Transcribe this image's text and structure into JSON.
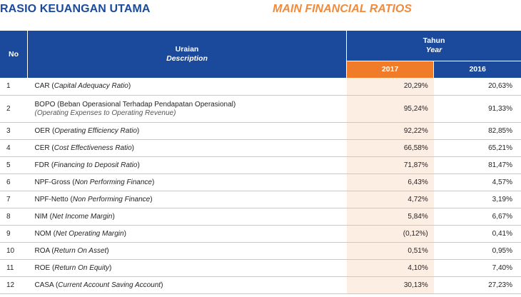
{
  "title": {
    "id": "RASIO KEUANGAN UTAMA",
    "en": "MAIN FINANCIAL RATIOS"
  },
  "header": {
    "no": "No",
    "desc_id": "Uraian",
    "desc_en": "Description",
    "year_id": "Tahun",
    "year_en": "Year",
    "col_2017": "2017",
    "col_2016": "2016"
  },
  "rows": [
    {
      "no": "1",
      "name": "CAR",
      "desc": "Capital Adequacy Ratio",
      "v2017": "20,29%",
      "v2016": "20,63%"
    },
    {
      "no": "2",
      "name": "BOPO",
      "desc_id": "Beban Operasional Terhadap Pendapatan Operasional",
      "desc_en": "Operating Expenses to Operating Revenue",
      "v2017": "95,24%",
      "v2016": "91,33%"
    },
    {
      "no": "3",
      "name": "OER",
      "desc": "Operating Efficiency Ratio",
      "v2017": "92,22%",
      "v2016": "82,85%"
    },
    {
      "no": "4",
      "name": "CER",
      "desc": "Cost Effectiveness Ratio",
      "v2017": "66,58%",
      "v2016": "65,21%"
    },
    {
      "no": "5",
      "name": "FDR",
      "desc": "Financing to Deposit Ratio",
      "v2017": "71,87%",
      "v2016": "81,47%"
    },
    {
      "no": "6",
      "name": "NPF-Gross",
      "desc": "Non Performing Finance",
      "v2017": "6,43%",
      "v2016": "4,57%"
    },
    {
      "no": "7",
      "name": "NPF-Netto",
      "desc": "Non Performing Finance",
      "v2017": "4,72%",
      "v2016": "3,19%"
    },
    {
      "no": "8",
      "name": "NIM",
      "desc": "Net Income Margin",
      "v2017": "5,84%",
      "v2016": "6,67%"
    },
    {
      "no": "9",
      "name": "NOM",
      "desc": "Net Operating Margin",
      "v2017": "(0,12%)",
      "v2016": "0,41%"
    },
    {
      "no": "10",
      "name": "ROA",
      "desc": "Return On Asset",
      "v2017": "0,51%",
      "v2016": "0,95%"
    },
    {
      "no": "11",
      "name": "ROE",
      "desc": "Return On Equity",
      "v2017": "4,10%",
      "v2016": "7,40%"
    },
    {
      "no": "12",
      "name": "CASA",
      "desc": "Current Account Saving Account",
      "v2017": "30,13%",
      "v2016": "27,23%"
    }
  ]
}
